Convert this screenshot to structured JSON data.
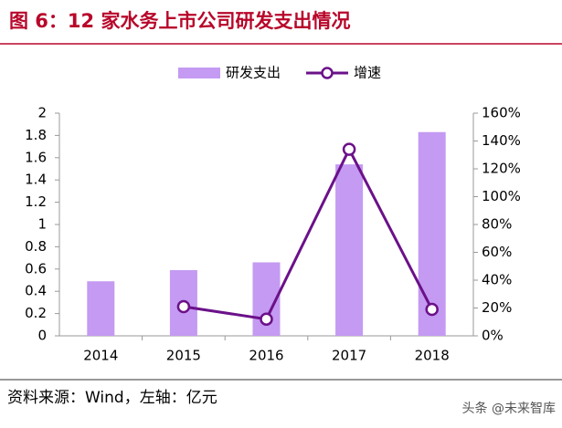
{
  "chart_data": {
    "type": "bar",
    "title": "图 6：12 家水务上市公司研发支出情况",
    "categories": [
      "2014",
      "2015",
      "2016",
      "2017",
      "2018"
    ],
    "series": [
      {
        "name": "研发支出",
        "type": "bar",
        "color": "#c49af2",
        "values": [
          0.49,
          0.59,
          0.66,
          1.54,
          1.83
        ]
      },
      {
        "name": "增速",
        "type": "line",
        "axis": "y2",
        "color": "#6b1189",
        "values": [
          null,
          21,
          12,
          134,
          19
        ]
      }
    ],
    "ylim": [
      0,
      2
    ],
    "yticks": [
      0,
      0.2,
      0.4,
      0.6,
      0.8,
      1,
      1.2,
      1.4,
      1.6,
      1.8,
      2
    ],
    "y2lim": [
      0,
      160
    ],
    "y2ticks": [
      {
        "value": 0,
        "label": "0%"
      },
      {
        "value": 20,
        "label": "20%"
      },
      {
        "value": 40,
        "label": "40%"
      },
      {
        "value": 60,
        "label": "60%"
      },
      {
        "value": 80,
        "label": "80%"
      },
      {
        "value": 100,
        "label": "100%"
      },
      {
        "value": 120,
        "label": "120%"
      },
      {
        "value": 140,
        "label": "140%"
      },
      {
        "value": 160,
        "label": "160%"
      }
    ],
    "legend": "top",
    "grid": false
  },
  "source": "资料来源：Wind，左轴：亿元",
  "watermark": "头条 @未来智库"
}
